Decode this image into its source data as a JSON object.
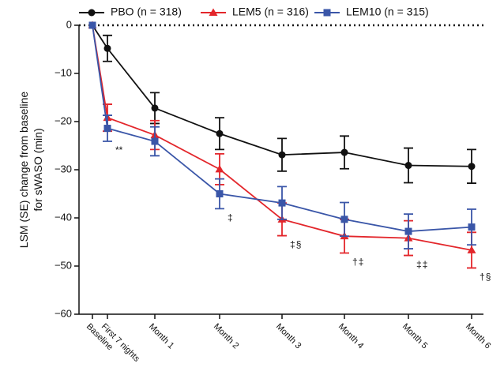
{
  "chart_data": {
    "type": "line",
    "ylabel": [
      "LSM (SE) change from baseline",
      "for sWASO (min)"
    ],
    "categories": [
      "Baseline",
      "First 7 nights",
      "Month 1",
      "Month 2",
      "Month 3",
      "Month 4",
      "Month 5",
      "Month 6"
    ],
    "ylim": [
      -60,
      0
    ],
    "yticks": [
      {
        "value": -60,
        "label": "−60"
      },
      {
        "value": -50,
        "label": "−50"
      },
      {
        "value": -40,
        "label": "−40"
      },
      {
        "value": -30,
        "label": "−30"
      },
      {
        "value": -20,
        "label": "−20"
      },
      {
        "value": -10,
        "label": "−10"
      },
      0
    ],
    "series": [
      {
        "name": "PBO (n = 318)",
        "color": "#111111",
        "marker": "circle",
        "values": [
          0,
          -4.8,
          -17.2,
          -22.5,
          -26.9,
          -26.4,
          -29.1,
          -29.3
        ],
        "errors": [
          null,
          2.7,
          3.2,
          3.3,
          3.4,
          3.4,
          3.6,
          3.5
        ],
        "annotations": [
          null,
          null,
          null,
          null,
          null,
          null,
          null,
          null
        ]
      },
      {
        "name": "LEM5 (n = 316)",
        "color": "#e3262b",
        "marker": "triangle",
        "values": [
          0,
          -19.2,
          -22.8,
          -29.9,
          -40.3,
          -43.8,
          -44.2,
          -46.7
        ],
        "errors": [
          null,
          2.8,
          3.0,
          3.2,
          3.4,
          3.5,
          3.6,
          3.7
        ],
        "annotations": [
          null,
          "**",
          null,
          null,
          "‡",
          "†",
          "‡",
          "†"
        ]
      },
      {
        "name": "LEM10 (n = 315)",
        "color": "#3a56a8",
        "marker": "square",
        "values": [
          0,
          -21.4,
          -24.1,
          -35.0,
          -36.9,
          -40.3,
          -42.8,
          -41.9
        ],
        "errors": [
          null,
          2.7,
          3.0,
          3.1,
          3.4,
          3.5,
          3.6,
          3.7
        ],
        "annotations": [
          null,
          null,
          null,
          "‡",
          "§",
          "‡",
          "‡",
          "§"
        ]
      }
    ]
  }
}
